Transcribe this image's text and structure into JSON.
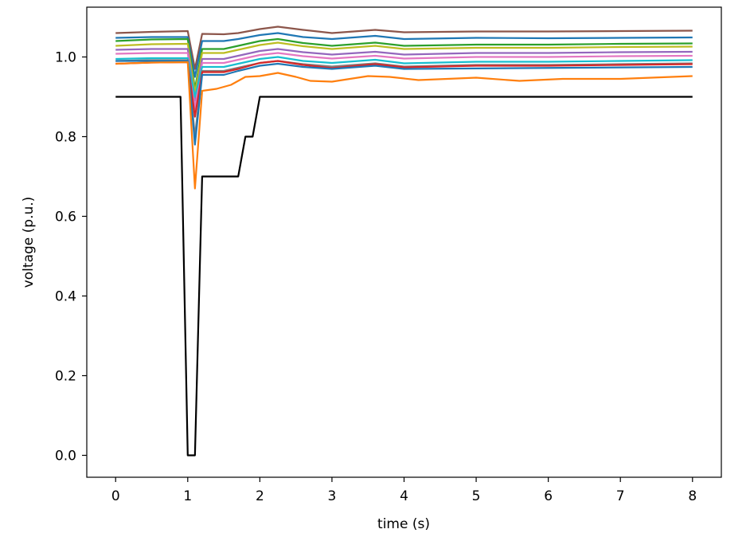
{
  "chart_data": {
    "type": "line",
    "title": "",
    "xlabel": "time (s)",
    "ylabel": "voltage (p.u.)",
    "xlim": [
      -0.4,
      8.4
    ],
    "ylim": [
      -0.055,
      1.125
    ],
    "xticks": [
      0,
      1,
      2,
      3,
      4,
      5,
      6,
      7,
      8
    ],
    "yticks": [
      0.0,
      0.2,
      0.4,
      0.6,
      0.8,
      1.0
    ],
    "ytick_labels": [
      "0.0",
      "0.2",
      "0.4",
      "0.6",
      "0.8",
      "1.0"
    ],
    "grid": false,
    "legend": "none",
    "series": [
      {
        "color": "#000000",
        "points": [
          [
            0,
            0.9
          ],
          [
            0.9,
            0.9
          ],
          [
            1.0,
            0.0
          ],
          [
            1.1,
            0.0
          ],
          [
            1.2,
            0.7
          ],
          [
            1.7,
            0.7
          ],
          [
            1.8,
            0.8
          ],
          [
            1.9,
            0.8
          ],
          [
            2.0,
            0.9
          ],
          [
            8.0,
            0.9
          ]
        ]
      },
      {
        "color": "#8c564b",
        "points": [
          [
            0,
            1.06
          ],
          [
            0.5,
            1.063
          ],
          [
            1.0,
            1.065
          ],
          [
            1.1,
            0.97
          ],
          [
            1.2,
            1.058
          ],
          [
            1.5,
            1.057
          ],
          [
            1.7,
            1.06
          ],
          [
            2.0,
            1.07
          ],
          [
            2.25,
            1.076
          ],
          [
            2.6,
            1.068
          ],
          [
            3.0,
            1.06
          ],
          [
            3.6,
            1.068
          ],
          [
            4.0,
            1.062
          ],
          [
            5.0,
            1.064
          ],
          [
            6.0,
            1.064
          ],
          [
            7.0,
            1.065
          ],
          [
            8.0,
            1.066
          ]
        ]
      },
      {
        "color": "#1f77b4",
        "points": [
          [
            0,
            1.048
          ],
          [
            0.5,
            1.05
          ],
          [
            1.0,
            1.05
          ],
          [
            1.1,
            0.95
          ],
          [
            1.2,
            1.04
          ],
          [
            1.5,
            1.04
          ],
          [
            1.7,
            1.045
          ],
          [
            2.0,
            1.055
          ],
          [
            2.25,
            1.06
          ],
          [
            2.6,
            1.05
          ],
          [
            3.0,
            1.045
          ],
          [
            3.6,
            1.053
          ],
          [
            4.0,
            1.045
          ],
          [
            5.0,
            1.048
          ],
          [
            6.0,
            1.047
          ],
          [
            7.0,
            1.048
          ],
          [
            8.0,
            1.049
          ]
        ]
      },
      {
        "color": "#2ca02c",
        "points": [
          [
            0,
            1.04
          ],
          [
            0.5,
            1.044
          ],
          [
            1.0,
            1.045
          ],
          [
            1.1,
            0.92
          ],
          [
            1.2,
            1.02
          ],
          [
            1.5,
            1.02
          ],
          [
            1.7,
            1.028
          ],
          [
            2.0,
            1.04
          ],
          [
            2.25,
            1.045
          ],
          [
            2.6,
            1.035
          ],
          [
            3.0,
            1.028
          ],
          [
            3.6,
            1.036
          ],
          [
            4.0,
            1.028
          ],
          [
            5.0,
            1.031
          ],
          [
            6.0,
            1.031
          ],
          [
            7.0,
            1.033
          ],
          [
            8.0,
            1.034
          ]
        ]
      },
      {
        "color": "#bcbd22",
        "points": [
          [
            0,
            1.028
          ],
          [
            0.5,
            1.032
          ],
          [
            1.0,
            1.033
          ],
          [
            1.1,
            0.91
          ],
          [
            1.2,
            1.01
          ],
          [
            1.5,
            1.01
          ],
          [
            1.7,
            1.018
          ],
          [
            2.0,
            1.03
          ],
          [
            2.25,
            1.036
          ],
          [
            2.6,
            1.027
          ],
          [
            3.0,
            1.02
          ],
          [
            3.6,
            1.028
          ],
          [
            4.0,
            1.02
          ],
          [
            5.0,
            1.023
          ],
          [
            6.0,
            1.023
          ],
          [
            7.0,
            1.025
          ],
          [
            8.0,
            1.026
          ]
        ]
      },
      {
        "color": "#9467bd",
        "points": [
          [
            0,
            1.018
          ],
          [
            0.5,
            1.02
          ],
          [
            1.0,
            1.02
          ],
          [
            1.1,
            0.89
          ],
          [
            1.2,
            0.995
          ],
          [
            1.5,
            0.995
          ],
          [
            1.7,
            1.003
          ],
          [
            2.0,
            1.015
          ],
          [
            2.25,
            1.02
          ],
          [
            2.6,
            1.012
          ],
          [
            3.0,
            1.006
          ],
          [
            3.6,
            1.013
          ],
          [
            4.0,
            1.006
          ],
          [
            5.0,
            1.01
          ],
          [
            6.0,
            1.01
          ],
          [
            7.0,
            1.012
          ],
          [
            8.0,
            1.013
          ]
        ]
      },
      {
        "color": "#e377c2",
        "points": [
          [
            0,
            1.008
          ],
          [
            0.5,
            1.01
          ],
          [
            1.0,
            1.01
          ],
          [
            1.1,
            0.87
          ],
          [
            1.2,
            0.985
          ],
          [
            1.5,
            0.985
          ],
          [
            1.7,
            0.993
          ],
          [
            2.0,
            1.005
          ],
          [
            2.25,
            1.01
          ],
          [
            2.6,
            1.002
          ],
          [
            3.0,
            0.996
          ],
          [
            3.6,
            1.003
          ],
          [
            4.0,
            0.996
          ],
          [
            5.0,
            1.0
          ],
          [
            6.0,
            1.0
          ],
          [
            7.0,
            1.002
          ],
          [
            8.0,
            1.003
          ]
        ]
      },
      {
        "color": "#17becf",
        "points": [
          [
            0,
            0.995
          ],
          [
            0.5,
            0.997
          ],
          [
            1.0,
            0.997
          ],
          [
            1.1,
            0.9
          ],
          [
            1.2,
            0.975
          ],
          [
            1.5,
            0.975
          ],
          [
            1.7,
            0.983
          ],
          [
            2.0,
            0.995
          ],
          [
            2.25,
            1.0
          ],
          [
            2.6,
            0.99
          ],
          [
            3.0,
            0.985
          ],
          [
            3.6,
            0.993
          ],
          [
            4.0,
            0.984
          ],
          [
            5.0,
            0.988
          ],
          [
            6.0,
            0.988
          ],
          [
            7.0,
            0.99
          ],
          [
            8.0,
            0.992
          ]
        ]
      },
      {
        "color": "#7f7f7f",
        "points": [
          [
            0,
            0.99
          ],
          [
            0.5,
            0.992
          ],
          [
            1.0,
            0.992
          ],
          [
            1.1,
            0.8
          ],
          [
            1.2,
            0.965
          ],
          [
            1.5,
            0.965
          ],
          [
            1.7,
            0.973
          ],
          [
            2.0,
            0.985
          ],
          [
            2.25,
            0.99
          ],
          [
            2.6,
            0.982
          ],
          [
            3.0,
            0.976
          ],
          [
            3.6,
            0.984
          ],
          [
            4.0,
            0.976
          ],
          [
            5.0,
            0.98
          ],
          [
            6.0,
            0.98
          ],
          [
            7.0,
            0.982
          ],
          [
            8.0,
            0.984
          ]
        ]
      },
      {
        "color": "#d62728",
        "points": [
          [
            0,
            0.983
          ],
          [
            0.5,
            0.986
          ],
          [
            1.0,
            0.987
          ],
          [
            1.1,
            0.85
          ],
          [
            1.2,
            0.962
          ],
          [
            1.5,
            0.962
          ],
          [
            1.7,
            0.97
          ],
          [
            2.0,
            0.985
          ],
          [
            2.25,
            0.99
          ],
          [
            2.6,
            0.98
          ],
          [
            3.0,
            0.972
          ],
          [
            3.6,
            0.982
          ],
          [
            4.0,
            0.974
          ],
          [
            5.0,
            0.978
          ],
          [
            6.0,
            0.978
          ],
          [
            7.0,
            0.98
          ],
          [
            8.0,
            0.982
          ]
        ]
      },
      {
        "color": "#1f77b4",
        "points": [
          [
            0,
            0.99
          ],
          [
            1.0,
            0.99
          ],
          [
            1.1,
            0.78
          ],
          [
            1.2,
            0.955
          ],
          [
            1.5,
            0.955
          ],
          [
            1.7,
            0.965
          ],
          [
            2.0,
            0.978
          ],
          [
            2.25,
            0.983
          ],
          [
            2.6,
            0.975
          ],
          [
            3.0,
            0.97
          ],
          [
            3.6,
            0.978
          ],
          [
            4.0,
            0.97
          ],
          [
            8.0,
            0.975
          ]
        ]
      },
      {
        "color": "#ff7f0e",
        "points": [
          [
            0,
            0.983
          ],
          [
            0.5,
            0.986
          ],
          [
            1.0,
            0.987
          ],
          [
            1.1,
            0.67
          ],
          [
            1.2,
            0.915
          ],
          [
            1.4,
            0.92
          ],
          [
            1.6,
            0.93
          ],
          [
            1.8,
            0.95
          ],
          [
            2.0,
            0.952
          ],
          [
            2.25,
            0.96
          ],
          [
            2.5,
            0.95
          ],
          [
            2.7,
            0.94
          ],
          [
            3.0,
            0.938
          ],
          [
            3.5,
            0.952
          ],
          [
            3.8,
            0.95
          ],
          [
            4.2,
            0.942
          ],
          [
            5.0,
            0.948
          ],
          [
            5.6,
            0.94
          ],
          [
            6.2,
            0.945
          ],
          [
            7.0,
            0.945
          ],
          [
            8.0,
            0.952
          ]
        ]
      }
    ]
  }
}
